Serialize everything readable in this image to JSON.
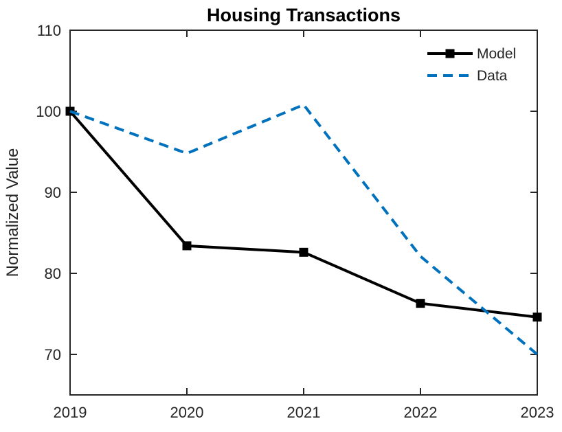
{
  "title": "Housing Transactions",
  "chart_data": {
    "type": "line",
    "title": "Housing Transactions",
    "xlabel": "",
    "ylabel": "Normalized Value",
    "x": [
      2019,
      2020,
      2021,
      2022,
      2023
    ],
    "series": [
      {
        "name": "Model",
        "values": [
          100,
          83.4,
          82.6,
          76.3,
          74.6
        ],
        "color": "#000000",
        "style": "solid",
        "marker": "square"
      },
      {
        "name": "Data",
        "values": [
          100,
          94.8,
          100.8,
          82.1,
          70.0
        ],
        "color": "#0072BD",
        "style": "dashed",
        "marker": "none"
      }
    ],
    "xlim": [
      2019,
      2023
    ],
    "ylim": [
      65,
      110
    ],
    "xticks": [
      2019,
      2020,
      2021,
      2022,
      2023
    ],
    "yticks": [
      70,
      80,
      90,
      100,
      110
    ],
    "grid": false,
    "legend": {
      "position": "top-right",
      "box": false,
      "entries": [
        "Model",
        "Data"
      ]
    }
  },
  "colors": {
    "background": "#ffffff",
    "axis": "#262626",
    "model_line": "#000000",
    "data_line": "#0072BD"
  }
}
